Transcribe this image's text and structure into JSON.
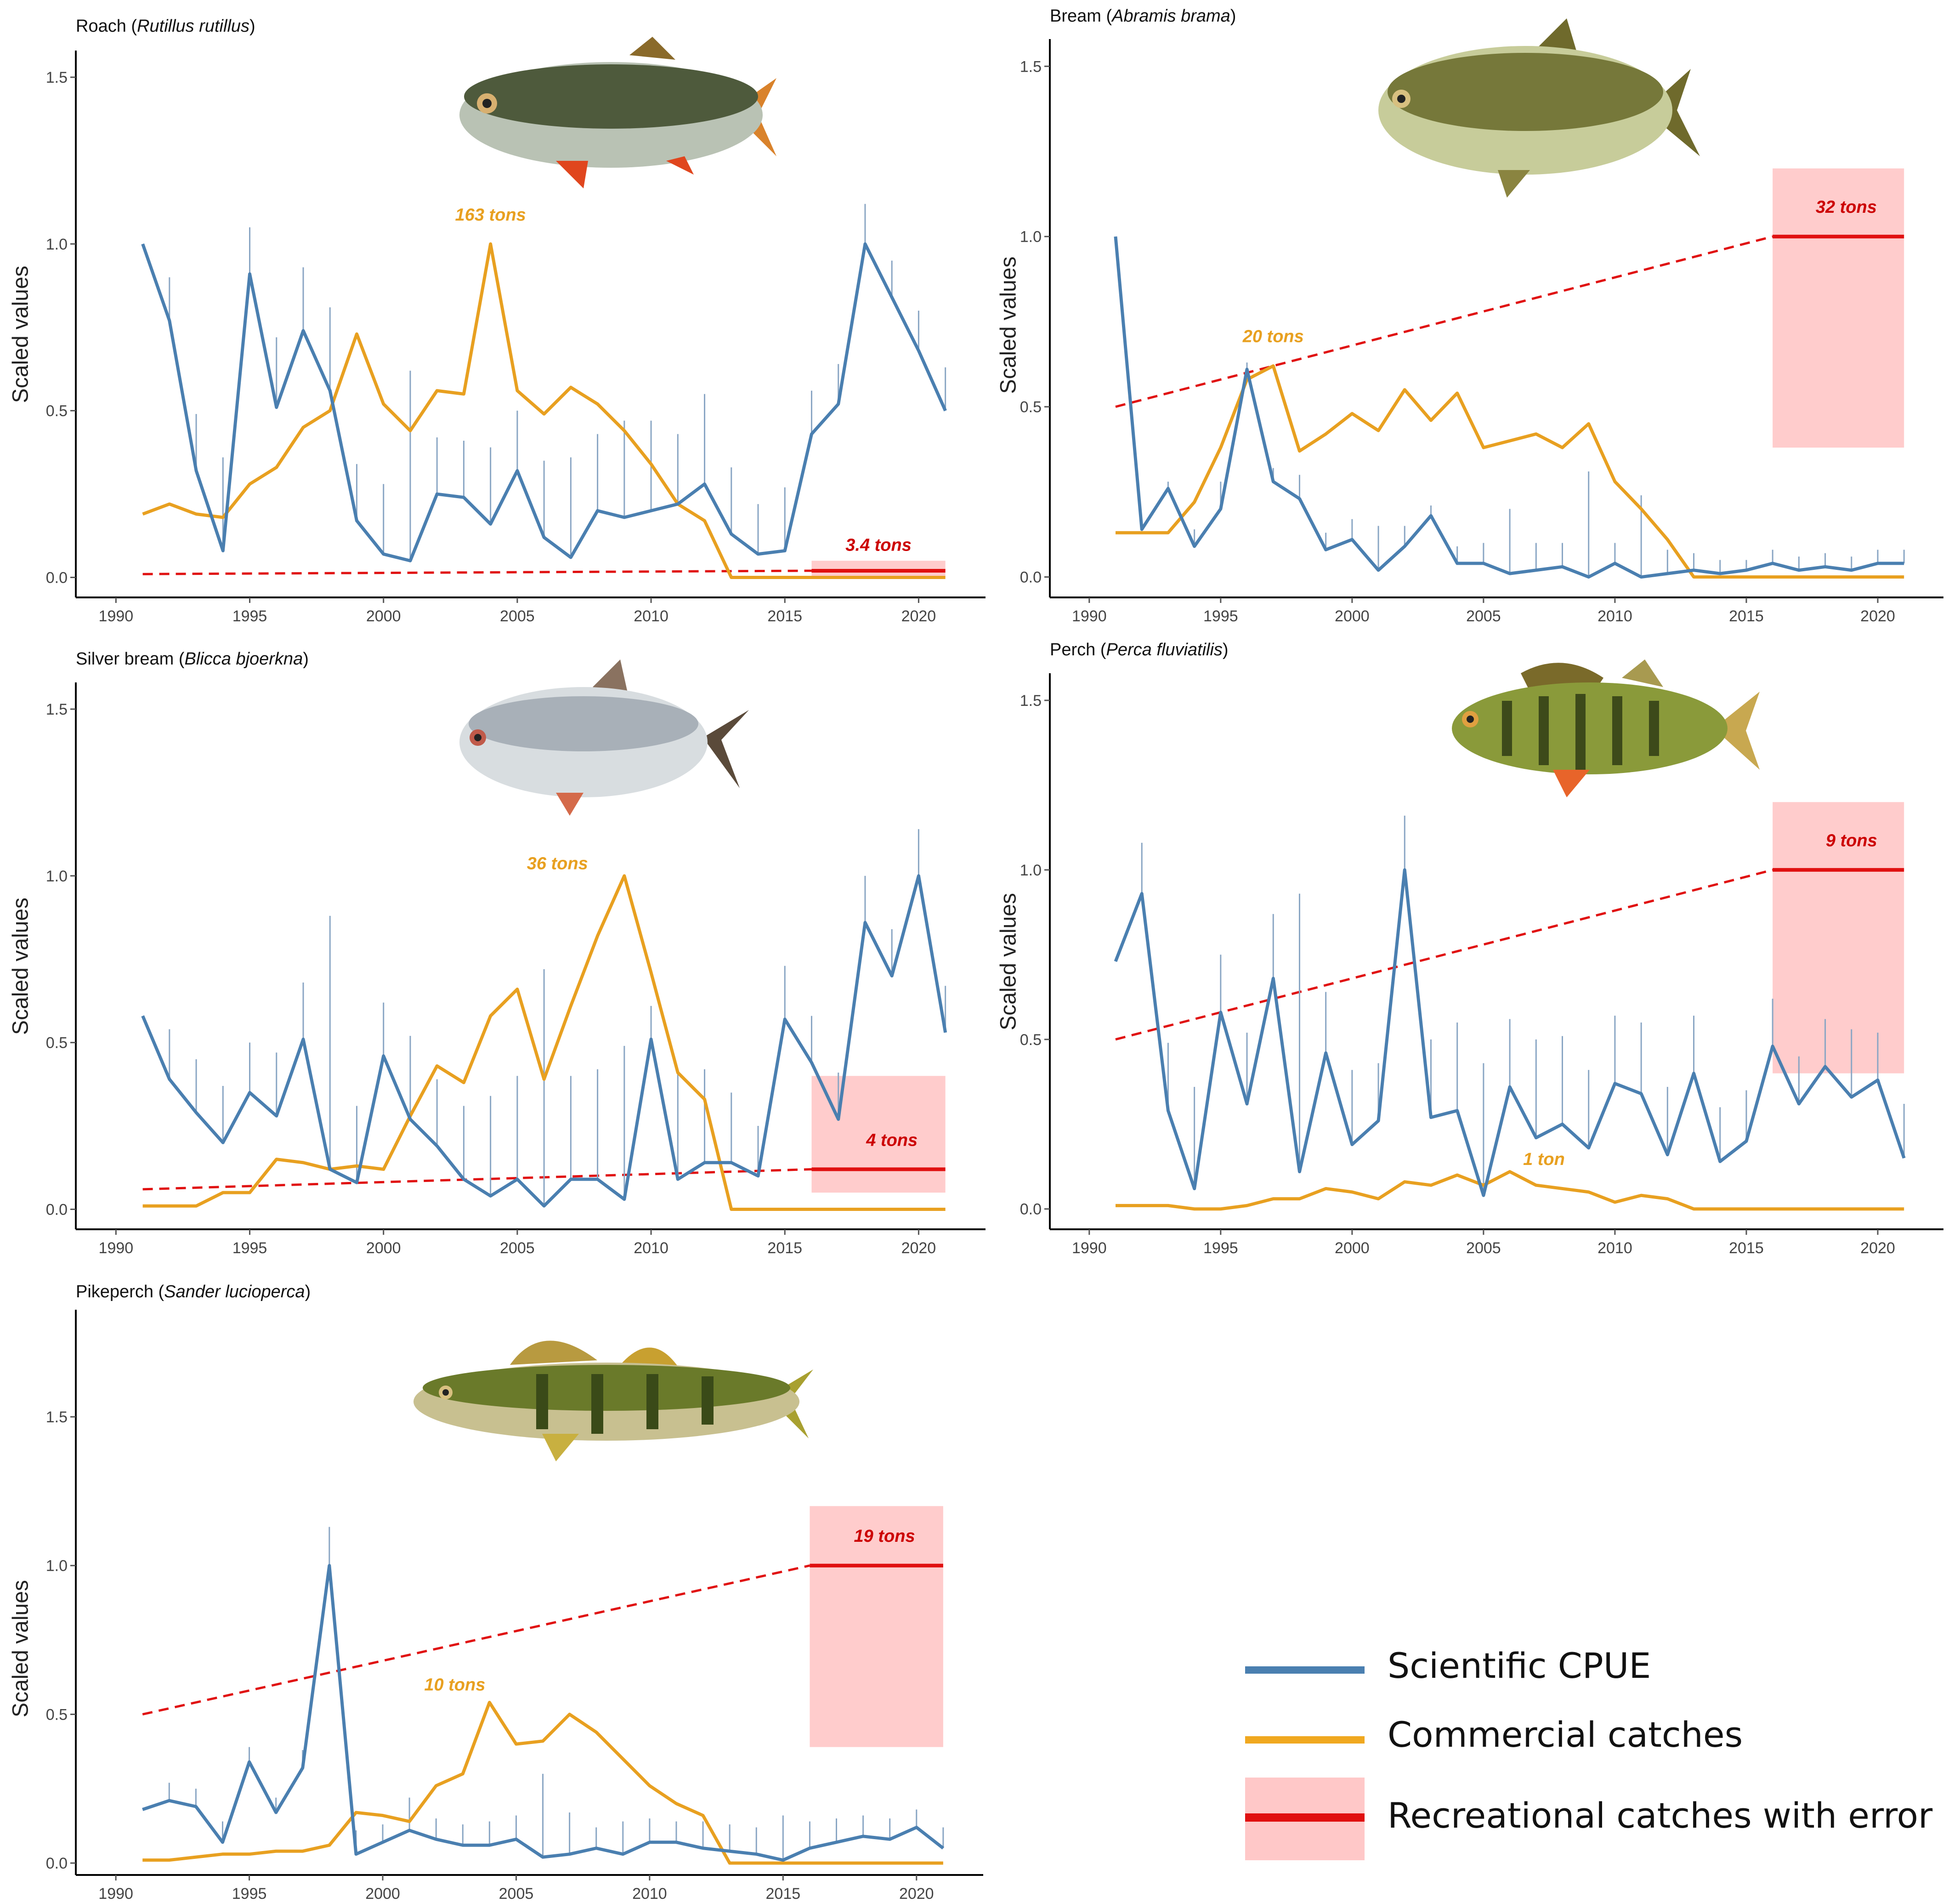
{
  "legend": {
    "items": [
      {
        "label": "Scientific CPUE",
        "color": "#4a7fb0"
      },
      {
        "label": "Commercial catches",
        "color": "#f0a820"
      },
      {
        "label": "Recreational catches with error",
        "color": "#e01010",
        "band_color": "#ffc8c8"
      }
    ]
  },
  "colors": {
    "cpue": "#4a7fb0",
    "commercial": "#e8a020",
    "recreational": "#e01010",
    "band": "#ffcccc",
    "annotation_commercial": "#e8a020",
    "annotation_recreational": "#cc0000"
  },
  "chart_data": [
    {
      "type": "line",
      "common_name": "Roach",
      "scientific_name": "Rutillus rutillus",
      "ylabel": "Scaled values",
      "xlim": [
        1988.5,
        2022.5
      ],
      "ylim": [
        -0.06,
        1.58
      ],
      "xticks": [
        1990,
        1995,
        2000,
        2005,
        2010,
        2015,
        2020
      ],
      "yticks": [
        0.0,
        0.5,
        1.0,
        1.5
      ],
      "ytick_labels": [
        "0.0",
        "0.5",
        "1.0",
        "1.5"
      ],
      "fish_icon": "roach-illustration",
      "x": [
        1991,
        1992,
        1993,
        1994,
        1995,
        1996,
        1997,
        1998,
        1999,
        2000,
        2001,
        2002,
        2003,
        2004,
        2005,
        2006,
        2007,
        2008,
        2009,
        2010,
        2011,
        2012,
        2013,
        2014,
        2015,
        2016,
        2017,
        2018,
        2019,
        2020,
        2021
      ],
      "series": [
        {
          "name": "Scientific CPUE",
          "values": [
            1.0,
            0.77,
            0.32,
            0.08,
            0.91,
            0.51,
            0.74,
            0.56,
            0.17,
            0.07,
            0.05,
            0.25,
            0.24,
            0.16,
            0.32,
            0.12,
            0.06,
            0.2,
            0.18,
            0.2,
            0.22,
            0.28,
            0.13,
            0.07,
            0.08,
            0.43,
            0.52,
            1.0,
            0.84,
            0.68,
            0.5
          ],
          "error_upper": [
            1.0,
            0.9,
            0.49,
            0.36,
            1.05,
            0.72,
            0.93,
            0.81,
            0.34,
            0.28,
            0.62,
            0.42,
            0.41,
            0.39,
            0.5,
            0.35,
            0.36,
            0.43,
            0.47,
            0.47,
            0.43,
            0.55,
            0.33,
            0.22,
            0.27,
            0.56,
            0.64,
            1.12,
            0.95,
            0.8,
            0.63
          ]
        },
        {
          "name": "Commercial catches",
          "values": [
            0.19,
            0.22,
            0.19,
            0.18,
            0.28,
            0.33,
            0.45,
            0.5,
            0.73,
            0.52,
            0.44,
            0.56,
            0.55,
            1.0,
            0.56,
            0.49,
            0.57,
            0.52,
            0.44,
            0.34,
            0.22,
            0.17,
            0.0,
            0.0,
            0.0,
            0.0,
            0.0,
            0.0,
            0.0,
            0.0,
            0.0
          ]
        }
      ],
      "recreational": {
        "trend_start": [
          1991,
          0.01
        ],
        "trend_end": [
          2016,
          0.02
        ],
        "value": 0.02,
        "band": [
          0.0,
          0.05
        ],
        "x_range": [
          2016,
          2021
        ]
      },
      "annotations": [
        {
          "text": "163 tons",
          "x": 2004,
          "y": 1.07,
          "kind": "commercial"
        },
        {
          "text": "3.4 tons",
          "x": 2018.5,
          "y": 0.08,
          "kind": "recreational"
        }
      ]
    },
    {
      "type": "line",
      "common_name": "Bream",
      "scientific_name": "Abramis brama",
      "ylabel": "Scaled values",
      "xlim": [
        1988.5,
        2022.5
      ],
      "ylim": [
        -0.06,
        1.58
      ],
      "xticks": [
        1990,
        1995,
        2000,
        2005,
        2010,
        2015,
        2020
      ],
      "yticks": [
        0.0,
        0.5,
        1.0,
        1.5
      ],
      "ytick_labels": [
        "0.0",
        "0.5",
        "1.0",
        "1.5"
      ],
      "fish_icon": "bream-illustration",
      "x": [
        1991,
        1992,
        1993,
        1994,
        1995,
        1996,
        1997,
        1998,
        1999,
        2000,
        2001,
        2002,
        2003,
        2004,
        2005,
        2006,
        2007,
        2008,
        2009,
        2010,
        2011,
        2012,
        2013,
        2014,
        2015,
        2016,
        2017,
        2018,
        2019,
        2020,
        2021
      ],
      "series": [
        {
          "name": "Scientific CPUE",
          "values": [
            1.0,
            0.14,
            0.26,
            0.09,
            0.2,
            0.61,
            0.28,
            0.23,
            0.08,
            0.11,
            0.02,
            0.09,
            0.18,
            0.04,
            0.04,
            0.01,
            0.02,
            0.03,
            0.0,
            0.04,
            0.0,
            0.01,
            0.02,
            0.01,
            0.02,
            0.04,
            0.02,
            0.03,
            0.02,
            0.04,
            0.04
          ],
          "error_upper": [
            1.0,
            0.14,
            0.28,
            0.14,
            0.28,
            0.63,
            0.32,
            0.3,
            0.13,
            0.17,
            0.15,
            0.15,
            0.21,
            0.09,
            0.1,
            0.2,
            0.1,
            0.1,
            0.31,
            0.1,
            0.24,
            0.08,
            0.07,
            0.05,
            0.05,
            0.08,
            0.06,
            0.07,
            0.06,
            0.08,
            0.08
          ]
        },
        {
          "name": "Commercial catches",
          "values": [
            0.13,
            0.13,
            0.13,
            0.22,
            0.38,
            0.58,
            0.62,
            0.37,
            0.42,
            0.48,
            0.43,
            0.55,
            0.46,
            0.54,
            0.38,
            0.4,
            0.42,
            0.38,
            0.45,
            0.28,
            0.2,
            0.11,
            0.0,
            0.0,
            0.0,
            0.0,
            0.0,
            0.0,
            0.0,
            0.0,
            0.0
          ]
        }
      ],
      "recreational": {
        "trend_start": [
          1991,
          0.5
        ],
        "trend_end": [
          2016,
          1.0
        ],
        "value": 1.0,
        "band": [
          0.38,
          1.2
        ],
        "x_range": [
          2016,
          2021
        ]
      },
      "annotations": [
        {
          "text": "20 tons",
          "x": 1997,
          "y": 0.69,
          "kind": "commercial"
        },
        {
          "text": "32 tons",
          "x": 2018.8,
          "y": 1.07,
          "kind": "recreational"
        }
      ]
    },
    {
      "type": "line",
      "common_name": "Silver bream",
      "scientific_name": "Blicca bjoerkna",
      "ylabel": "Scaled values",
      "xlim": [
        1988.5,
        2022.5
      ],
      "ylim": [
        -0.06,
        1.58
      ],
      "xticks": [
        1990,
        1995,
        2000,
        2005,
        2010,
        2015,
        2020
      ],
      "yticks": [
        0.0,
        0.5,
        1.0,
        1.5
      ],
      "ytick_labels": [
        "0.0",
        "0.5",
        "1.0",
        "1.5"
      ],
      "fish_icon": "silver-bream-illustration",
      "x": [
        1991,
        1992,
        1993,
        1994,
        1995,
        1996,
        1997,
        1998,
        1999,
        2000,
        2001,
        2002,
        2003,
        2004,
        2005,
        2006,
        2007,
        2008,
        2009,
        2010,
        2011,
        2012,
        2013,
        2014,
        2015,
        2016,
        2017,
        2018,
        2019,
        2020,
        2021
      ],
      "series": [
        {
          "name": "Scientific CPUE",
          "values": [
            0.58,
            0.39,
            0.29,
            0.2,
            0.35,
            0.28,
            0.51,
            0.12,
            0.08,
            0.46,
            0.27,
            0.19,
            0.09,
            0.04,
            0.09,
            0.01,
            0.09,
            0.09,
            0.03,
            0.51,
            0.09,
            0.14,
            0.14,
            0.1,
            0.57,
            0.44,
            0.27,
            0.86,
            0.7,
            1.0,
            0.53
          ],
          "error_upper": [
            0.58,
            0.54,
            0.45,
            0.37,
            0.5,
            0.47,
            0.68,
            0.88,
            0.31,
            0.62,
            0.52,
            0.39,
            0.31,
            0.34,
            0.4,
            0.72,
            0.4,
            0.42,
            0.49,
            0.61,
            0.41,
            0.42,
            0.35,
            0.25,
            0.73,
            0.58,
            0.41,
            1.0,
            0.84,
            1.14,
            0.67
          ]
        },
        {
          "name": "Commercial catches",
          "values": [
            0.01,
            0.01,
            0.01,
            0.05,
            0.05,
            0.15,
            0.14,
            0.12,
            0.13,
            0.12,
            0.28,
            0.43,
            0.38,
            0.58,
            0.66,
            0.39,
            0.61,
            0.82,
            1.0,
            0.71,
            0.41,
            0.33,
            0.0,
            0.0,
            0.0,
            0.0,
            0.0,
            0.0,
            0.0,
            0.0,
            0.0
          ]
        }
      ],
      "recreational": {
        "trend_start": [
          1991,
          0.06
        ],
        "trend_end": [
          2016,
          0.12
        ],
        "value": 0.12,
        "band": [
          0.05,
          0.4
        ],
        "x_range": [
          2016,
          2021
        ]
      },
      "annotations": [
        {
          "text": "36 tons",
          "x": 2006.5,
          "y": 1.02,
          "kind": "commercial"
        },
        {
          "text": "4 tons",
          "x": 2019,
          "y": 0.19,
          "kind": "recreational"
        }
      ]
    },
    {
      "type": "line",
      "common_name": "Perch",
      "scientific_name": "Perca fluviatilis",
      "ylabel": "Scaled values",
      "xlim": [
        1988.5,
        2022.5
      ],
      "ylim": [
        -0.06,
        1.58
      ],
      "xticks": [
        1990,
        1995,
        2000,
        2005,
        2010,
        2015,
        2020
      ],
      "yticks": [
        0.0,
        0.5,
        1.0,
        1.5
      ],
      "ytick_labels": [
        "0.0",
        "0.5",
        "1.0",
        "1.5"
      ],
      "fish_icon": "perch-illustration",
      "x": [
        1991,
        1992,
        1993,
        1994,
        1995,
        1996,
        1997,
        1998,
        1999,
        2000,
        2001,
        2002,
        2003,
        2004,
        2005,
        2006,
        2007,
        2008,
        2009,
        2010,
        2011,
        2012,
        2013,
        2014,
        2015,
        2016,
        2017,
        2018,
        2019,
        2020,
        2021
      ],
      "series": [
        {
          "name": "Scientific CPUE",
          "values": [
            0.73,
            0.93,
            0.29,
            0.06,
            0.58,
            0.31,
            0.68,
            0.11,
            0.46,
            0.19,
            0.26,
            1.0,
            0.27,
            0.29,
            0.04,
            0.36,
            0.21,
            0.25,
            0.18,
            0.37,
            0.34,
            0.16,
            0.4,
            0.14,
            0.2,
            0.48,
            0.31,
            0.42,
            0.33,
            0.38,
            0.15
          ],
          "error_upper": [
            0.73,
            1.08,
            0.49,
            0.36,
            0.75,
            0.52,
            0.87,
            0.93,
            0.64,
            0.41,
            0.43,
            1.16,
            0.5,
            0.55,
            0.43,
            0.56,
            0.5,
            0.51,
            0.41,
            0.57,
            0.55,
            0.36,
            0.57,
            0.3,
            0.35,
            0.62,
            0.45,
            0.56,
            0.53,
            0.52,
            0.31
          ]
        },
        {
          "name": "Commercial catches",
          "values": [
            0.01,
            0.01,
            0.01,
            0.0,
            0.0,
            0.01,
            0.03,
            0.03,
            0.06,
            0.05,
            0.03,
            0.08,
            0.07,
            0.1,
            0.07,
            0.11,
            0.07,
            0.06,
            0.05,
            0.02,
            0.04,
            0.03,
            0.0,
            0.0,
            0.0,
            0.0,
            0.0,
            0.0,
            0.0,
            0.0,
            0.0
          ]
        }
      ],
      "recreational": {
        "trend_start": [
          1991,
          0.5
        ],
        "trend_end": [
          2016,
          1.0
        ],
        "value": 1.0,
        "band": [
          0.4,
          1.2
        ],
        "x_range": [
          2016,
          2021
        ]
      },
      "annotations": [
        {
          "text": "1 ton",
          "x": 2007.3,
          "y": 0.13,
          "kind": "commercial"
        },
        {
          "text": "9 tons",
          "x": 2019,
          "y": 1.07,
          "kind": "recreational"
        }
      ]
    },
    {
      "type": "line",
      "common_name": "Pikeperch",
      "scientific_name": "Sander lucioperca",
      "ylabel": "Scaled values",
      "xlim": [
        1988.5,
        2022.5
      ],
      "ylim": [
        -0.04,
        1.86
      ],
      "xticks": [
        1990,
        1995,
        2000,
        2005,
        2010,
        2015,
        2020
      ],
      "yticks": [
        0.0,
        0.5,
        1.0,
        1.5
      ],
      "ytick_labels": [
        "0.0",
        "0.5",
        "1.0",
        "1.5"
      ],
      "fish_icon": "pikeperch-illustration",
      "x": [
        1991,
        1992,
        1993,
        1994,
        1995,
        1996,
        1997,
        1998,
        1999,
        2000,
        2001,
        2002,
        2003,
        2004,
        2005,
        2006,
        2007,
        2008,
        2009,
        2010,
        2011,
        2012,
        2013,
        2014,
        2015,
        2016,
        2017,
        2018,
        2019,
        2020,
        2021
      ],
      "series": [
        {
          "name": "Scientific CPUE",
          "values": [
            0.18,
            0.21,
            0.19,
            0.07,
            0.34,
            0.17,
            0.32,
            1.0,
            0.03,
            0.07,
            0.11,
            0.08,
            0.06,
            0.06,
            0.08,
            0.02,
            0.03,
            0.05,
            0.03,
            0.07,
            0.07,
            0.05,
            0.04,
            0.03,
            0.01,
            0.05,
            0.07,
            0.09,
            0.08,
            0.12,
            0.05
          ],
          "error_upper": [
            0.18,
            0.27,
            0.25,
            0.14,
            0.39,
            0.22,
            0.38,
            1.13,
            0.11,
            0.13,
            0.22,
            0.15,
            0.13,
            0.14,
            0.16,
            0.3,
            0.17,
            0.12,
            0.14,
            0.15,
            0.14,
            0.14,
            0.13,
            0.12,
            0.16,
            0.14,
            0.15,
            0.16,
            0.15,
            0.18,
            0.12
          ]
        },
        {
          "name": "Commercial catches",
          "values": [
            0.01,
            0.01,
            0.02,
            0.03,
            0.03,
            0.04,
            0.04,
            0.06,
            0.17,
            0.16,
            0.14,
            0.26,
            0.3,
            0.54,
            0.4,
            0.41,
            0.5,
            0.44,
            0.35,
            0.26,
            0.2,
            0.16,
            0.0,
            0.0,
            0.0,
            0.0,
            0.0,
            0.0,
            0.0,
            0.0,
            0.0
          ]
        }
      ],
      "recreational": {
        "trend_start": [
          1991,
          0.5
        ],
        "trend_end": [
          2016,
          1.0
        ],
        "value": 1.0,
        "band": [
          0.39,
          1.2
        ],
        "x_range": [
          2016,
          2021
        ]
      },
      "annotations": [
        {
          "text": "10 tons",
          "x": 2002.7,
          "y": 0.58,
          "kind": "commercial"
        },
        {
          "text": "19 tons",
          "x": 2018.8,
          "y": 1.08,
          "kind": "recreational"
        }
      ]
    }
  ]
}
